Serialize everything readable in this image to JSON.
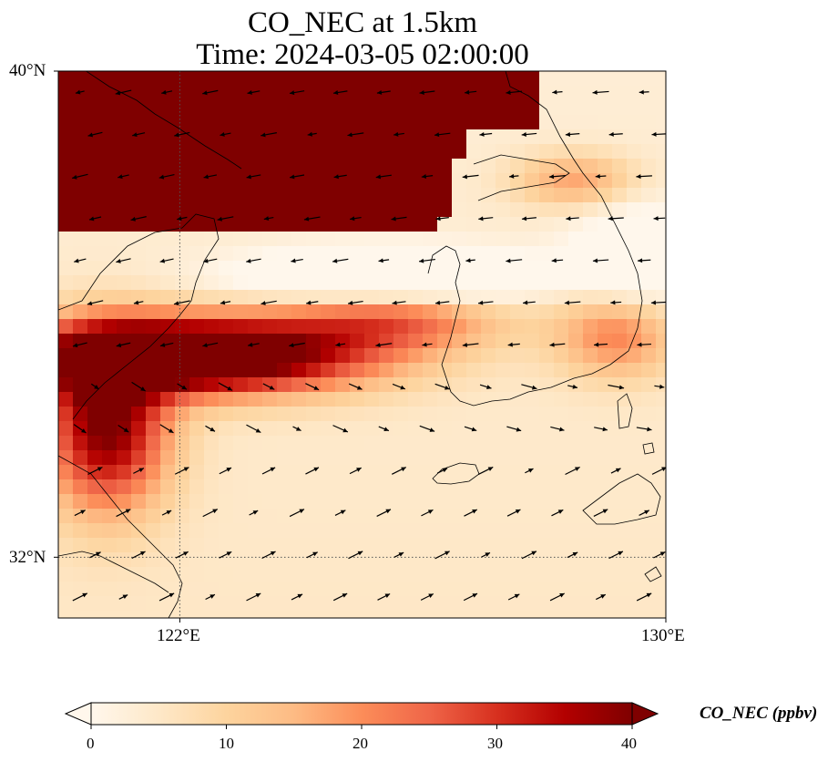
{
  "title_line1": "CO_NEC at 1.5km",
  "title_line2": "Time: 2024-03-05 02:00:00",
  "map": {
    "lat_range": [
      31,
      40
    ],
    "lon_range": [
      120,
      130
    ],
    "lat_labels": [
      "40°N",
      "32°N"
    ],
    "lon_labels": [
      "122°E",
      "130°E"
    ],
    "gridlines_lat": [
      32
    ],
    "gridlines_lon": [
      122
    ]
  },
  "colorbar": {
    "label": "CO_NEC (ppbv)",
    "ticks": [
      "0",
      "10",
      "20",
      "30",
      "40"
    ],
    "vmin": 0,
    "vmax": 40,
    "colormap": "OrRd",
    "colors": [
      "#fff7ec",
      "#fee8c8",
      "#fdd49e",
      "#fdbb84",
      "#fc8d59",
      "#ef6548",
      "#d7301f",
      "#b30000",
      "#7f0000"
    ],
    "extend": "both"
  },
  "coastline_color": "#000000",
  "wind_arrow_color": "#000000"
}
